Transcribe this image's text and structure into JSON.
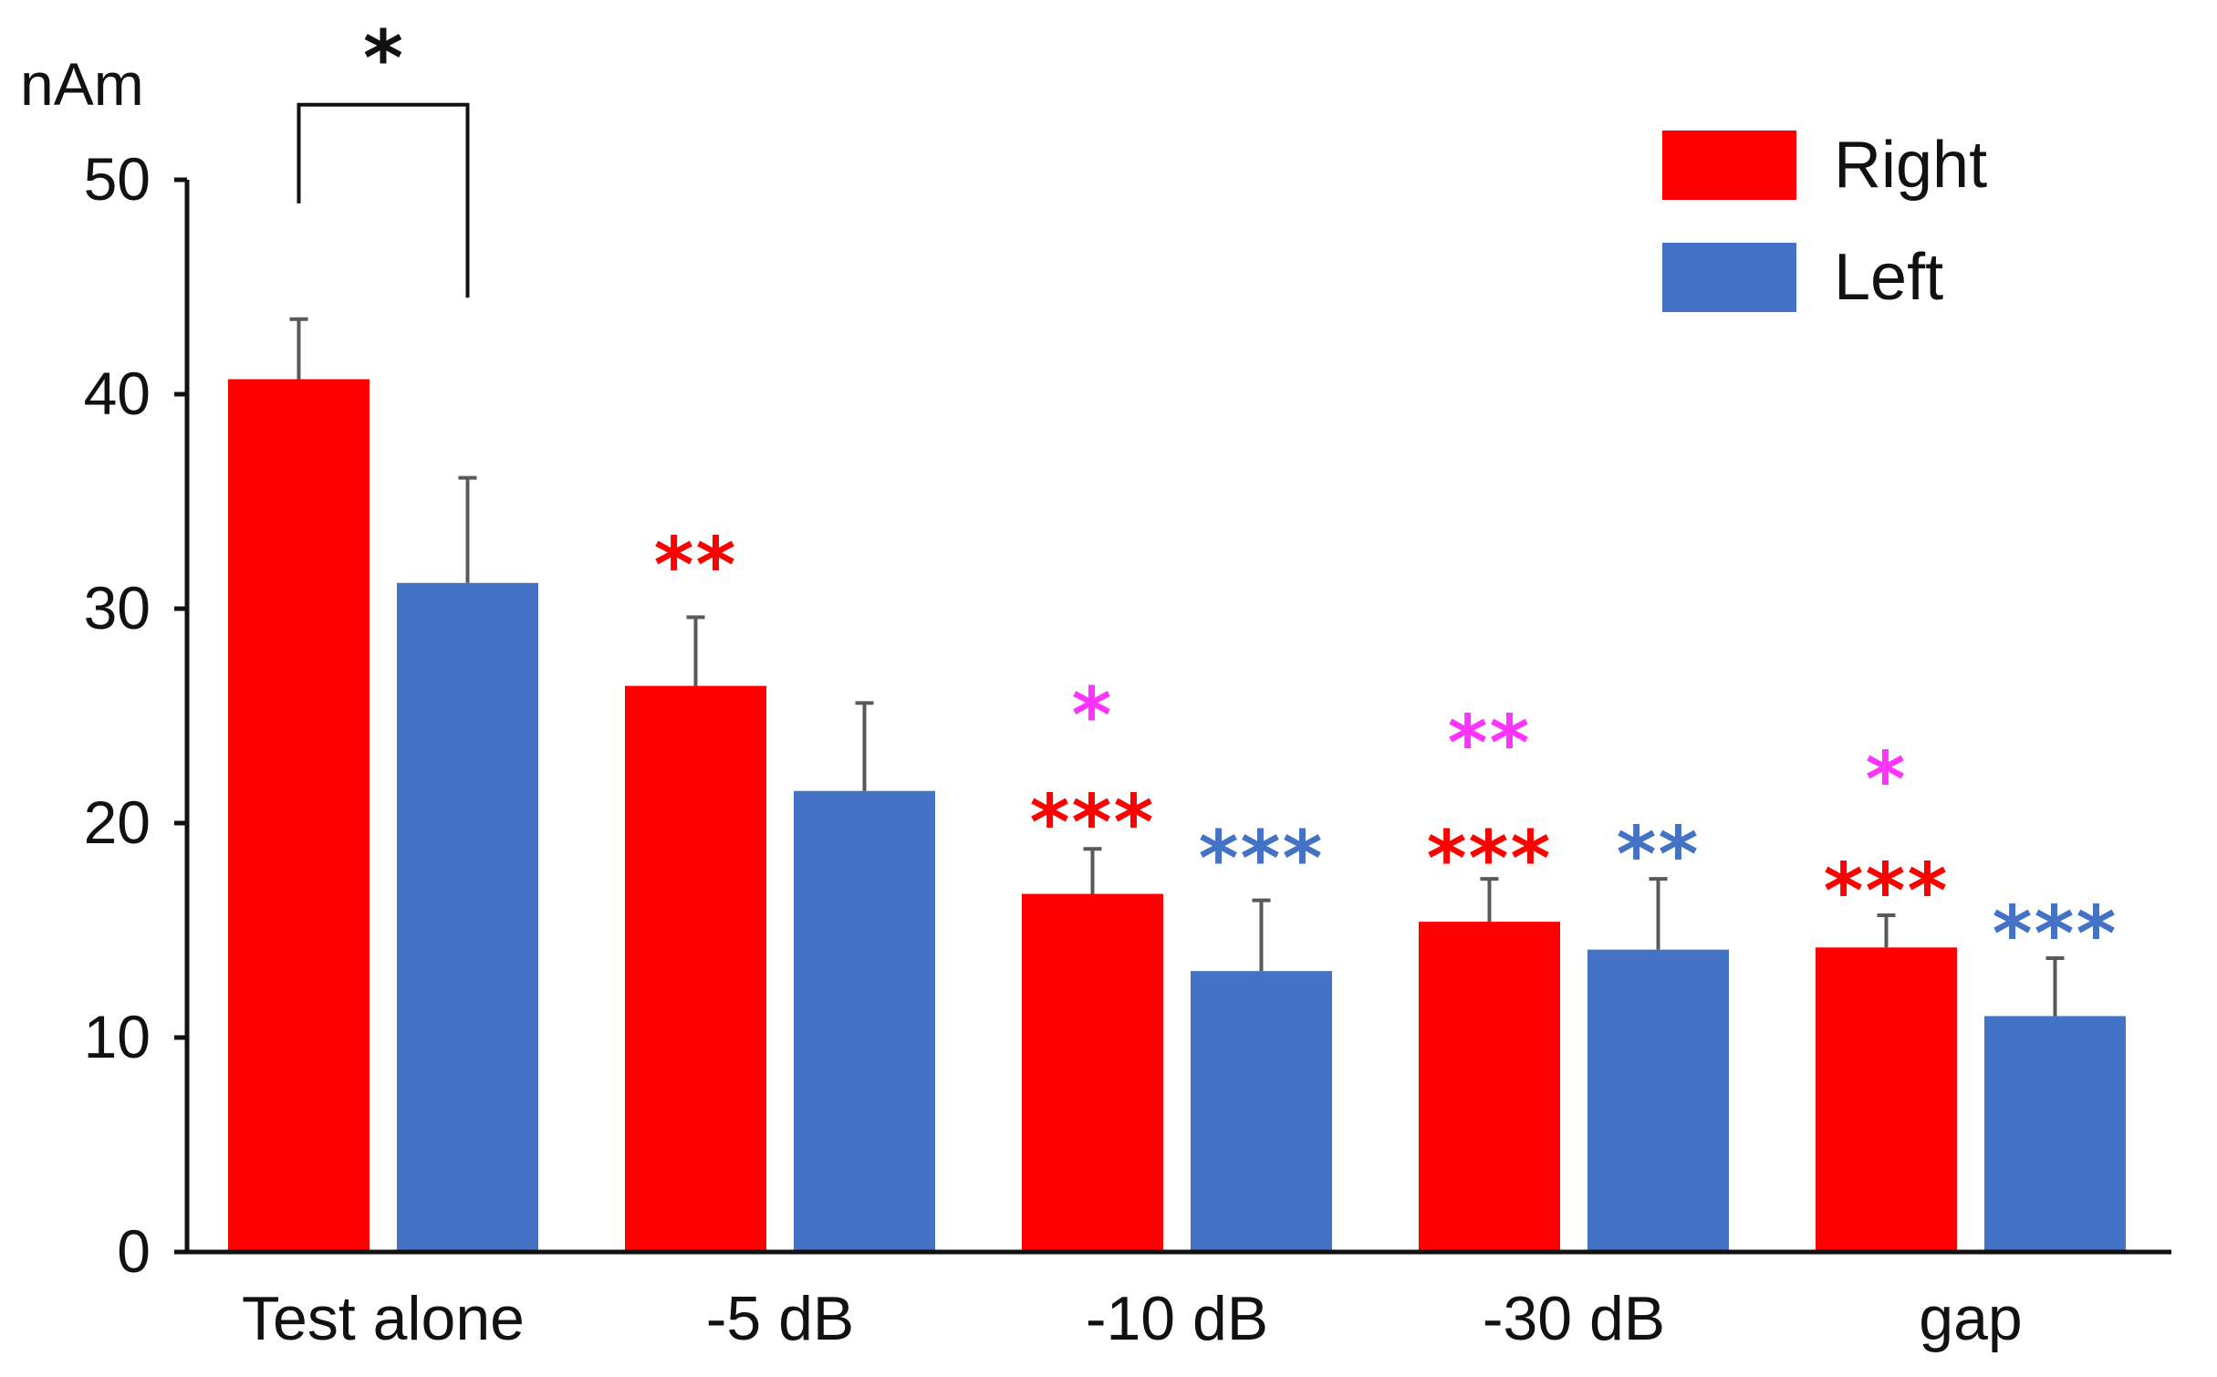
{
  "chart_data": {
    "type": "bar",
    "title": "",
    "xlabel": "",
    "ylabel": "nAm",
    "ylim": [
      0,
      50
    ],
    "yticks": [
      0,
      10,
      20,
      30,
      40,
      50
    ],
    "grid": false,
    "legend_position": "top-right",
    "categories": [
      "Test alone",
      "-5 dB",
      "-10 dB",
      "-30 dB",
      "gap"
    ],
    "series": [
      {
        "name": "Right",
        "color": "#ff0000",
        "values": [
          40.7,
          26.4,
          16.7,
          15.4,
          14.2
        ],
        "errors": [
          2.8,
          3.2,
          2.1,
          2.0,
          1.5
        ]
      },
      {
        "name": "Left",
        "color": "#4472c4",
        "values": [
          31.2,
          21.5,
          13.1,
          14.1,
          11.0
        ],
        "errors": [
          4.9,
          4.1,
          3.3,
          3.3,
          2.7
        ]
      }
    ],
    "annotations": [
      {
        "category": 1,
        "series": 0,
        "text": "**",
        "color": "#ff0000",
        "y": 32.5
      },
      {
        "category": 2,
        "series": 0,
        "text": "***",
        "color": "#ff0000",
        "y": 20.5
      },
      {
        "category": 2,
        "series": 0,
        "text": "*",
        "color": "#ff33ff",
        "y": 25.5
      },
      {
        "category": 2,
        "series": 1,
        "text": "***",
        "color": "#4472c4",
        "y": 18.8
      },
      {
        "category": 3,
        "series": 0,
        "text": "***",
        "color": "#ff0000",
        "y": 18.8
      },
      {
        "category": 3,
        "series": 0,
        "text": "**",
        "color": "#ff33ff",
        "y": 24.2
      },
      {
        "category": 3,
        "series": 1,
        "text": "**",
        "color": "#4472c4",
        "y": 19.0
      },
      {
        "category": 4,
        "series": 0,
        "text": "***",
        "color": "#ff0000",
        "y": 17.3
      },
      {
        "category": 4,
        "series": 0,
        "text": "*",
        "color": "#ff33ff",
        "y": 22.5
      },
      {
        "category": 4,
        "series": 1,
        "text": "***",
        "color": "#4472c4",
        "y": 15.3
      }
    ],
    "significance_bracket": {
      "category": 0,
      "text": "*",
      "color": "#111111",
      "y_low_right": 44.5,
      "y_low_left": 48.9,
      "y_top": 53.5
    }
  }
}
